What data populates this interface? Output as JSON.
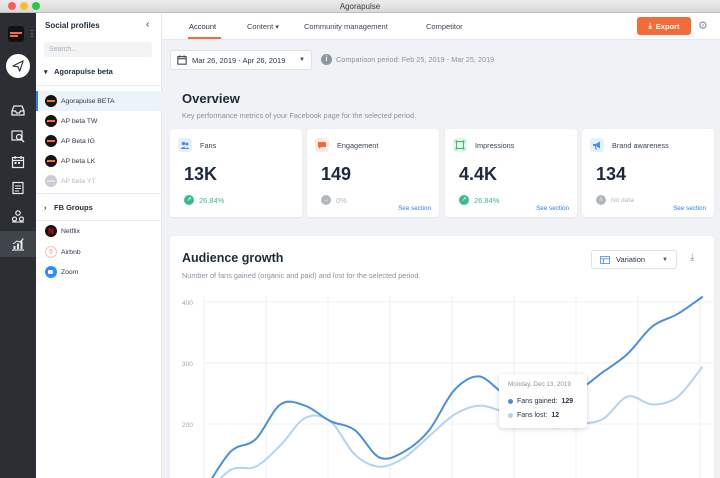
{
  "window": {
    "title": "Agorapulse"
  },
  "rail": {
    "icons": [
      "logo-icon",
      "publish-icon",
      "inbox-icon",
      "search-listening-icon",
      "calendar-icon",
      "schedule-icon",
      "crm-icon",
      "reports-icon"
    ]
  },
  "sidebar": {
    "header": "Social profiles",
    "search_placeholder": "Search...",
    "groups": [
      {
        "name": "Agorapulse beta",
        "items": [
          {
            "label": "Agorapulse BETA"
          },
          {
            "label": "AP beta TW"
          },
          {
            "label": "AP Beta IG"
          },
          {
            "label": "AP beta LK"
          },
          {
            "label": "AP beta YT"
          }
        ]
      },
      {
        "name": "FB Groups",
        "items": [
          {
            "label": "Netflix"
          },
          {
            "label": "Airbnb"
          },
          {
            "label": "Zoom"
          }
        ]
      }
    ]
  },
  "tabs": [
    "Account",
    "Content",
    "Community management",
    "Competitor"
  ],
  "toolbar": {
    "export_label": "Export"
  },
  "date_range": "Mar 26, 2019 - Apr 26, 2019",
  "comparison": "Comparison period: Feb 25, 2019 - Mar 25, 2019",
  "overview": {
    "title": "Overview",
    "subtitle": "Key performance metrics of your Facebook page for the selected period.",
    "cards": [
      {
        "label": "Fans",
        "value": "13K",
        "delta": "26.84%",
        "see": "",
        "accent": "#4a90e2",
        "delta_color": "#3dbb8e"
      },
      {
        "label": "Engagement",
        "value": "149",
        "delta": "0%",
        "see": "See section",
        "accent": "#f26b38",
        "delta_color": "#b3b8bf"
      },
      {
        "label": "Impressions",
        "value": "4.4K",
        "delta": "26.84%",
        "see": "See section",
        "accent": "#3dbb6e",
        "delta_color": "#3dbb8e"
      },
      {
        "label": "Brand awareness",
        "value": "134",
        "delta": "No data",
        "see": "See section",
        "accent": "#4a90e2",
        "delta_color": "#b3b8bf"
      }
    ]
  },
  "audience": {
    "title": "Audience growth",
    "subtitle": "Number of fans gained (organic and paid) and lost for the selected period.",
    "variation_label": "Variation",
    "tooltip": {
      "date": "Monday, Dec 13, 2019",
      "gained_label": "Fans gained:",
      "gained_value": "129",
      "lost_label": "Fans lost:",
      "lost_value": "12"
    }
  },
  "chart_data": {
    "type": "line",
    "y_ticks": [
      "400",
      "300",
      "200"
    ],
    "ylim": [
      100,
      400
    ],
    "series": [
      {
        "name": "Fans gained",
        "color": "#4a90d9",
        "values": [
          95,
          155,
          175,
          232,
          230,
          205,
          190,
          145,
          155,
          190,
          255,
          278,
          250,
          232,
          268,
          258,
          285,
          315,
          360,
          380,
          408
        ]
      },
      {
        "name": "Fans lost",
        "color": "#b3d3ef",
        "values": [
          85,
          125,
          130,
          165,
          210,
          205,
          150,
          130,
          145,
          180,
          215,
          230,
          220,
          208,
          195,
          200,
          208,
          245,
          232,
          244,
          293
        ]
      }
    ]
  }
}
